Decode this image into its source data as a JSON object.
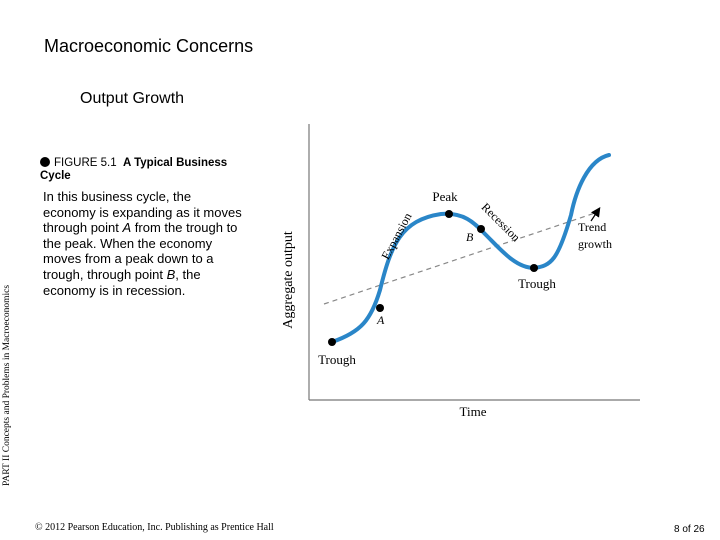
{
  "slide": {
    "title": "Macroeconomic Concerns",
    "subtitle": "Output Growth",
    "side_label": "PART II Concepts and Problems in Macroeconomics",
    "figure_number": "FIGURE 5.1",
    "figure_title": "A Typical Business Cycle",
    "caption_parts": {
      "p1": "In this business cycle, the economy is expanding as it moves through point ",
      "a": "A",
      "p2": " from the trough to the peak. When the economy moves from a peak down to a trough, through point ",
      "b": "B",
      "p3": ", the economy is in recession."
    },
    "copyright": "© 2012 Pearson Education, Inc. Publishing as Prentice Hall",
    "page_number": "8 of 26"
  },
  "diagram": {
    "y_axis_label": "Aggregate output",
    "x_axis_label": "Time",
    "labels": {
      "peak": "Peak",
      "expansion": "Expansion",
      "recession": "Recession",
      "trough_left": "Trough",
      "trough_right": "Trough",
      "point_a": "A",
      "point_b": "B",
      "trend_line1": "Trend",
      "trend_line2": "growth"
    },
    "colors": {
      "curve": "#2a86c8",
      "trend": "#888888",
      "axes": "#777777"
    }
  }
}
